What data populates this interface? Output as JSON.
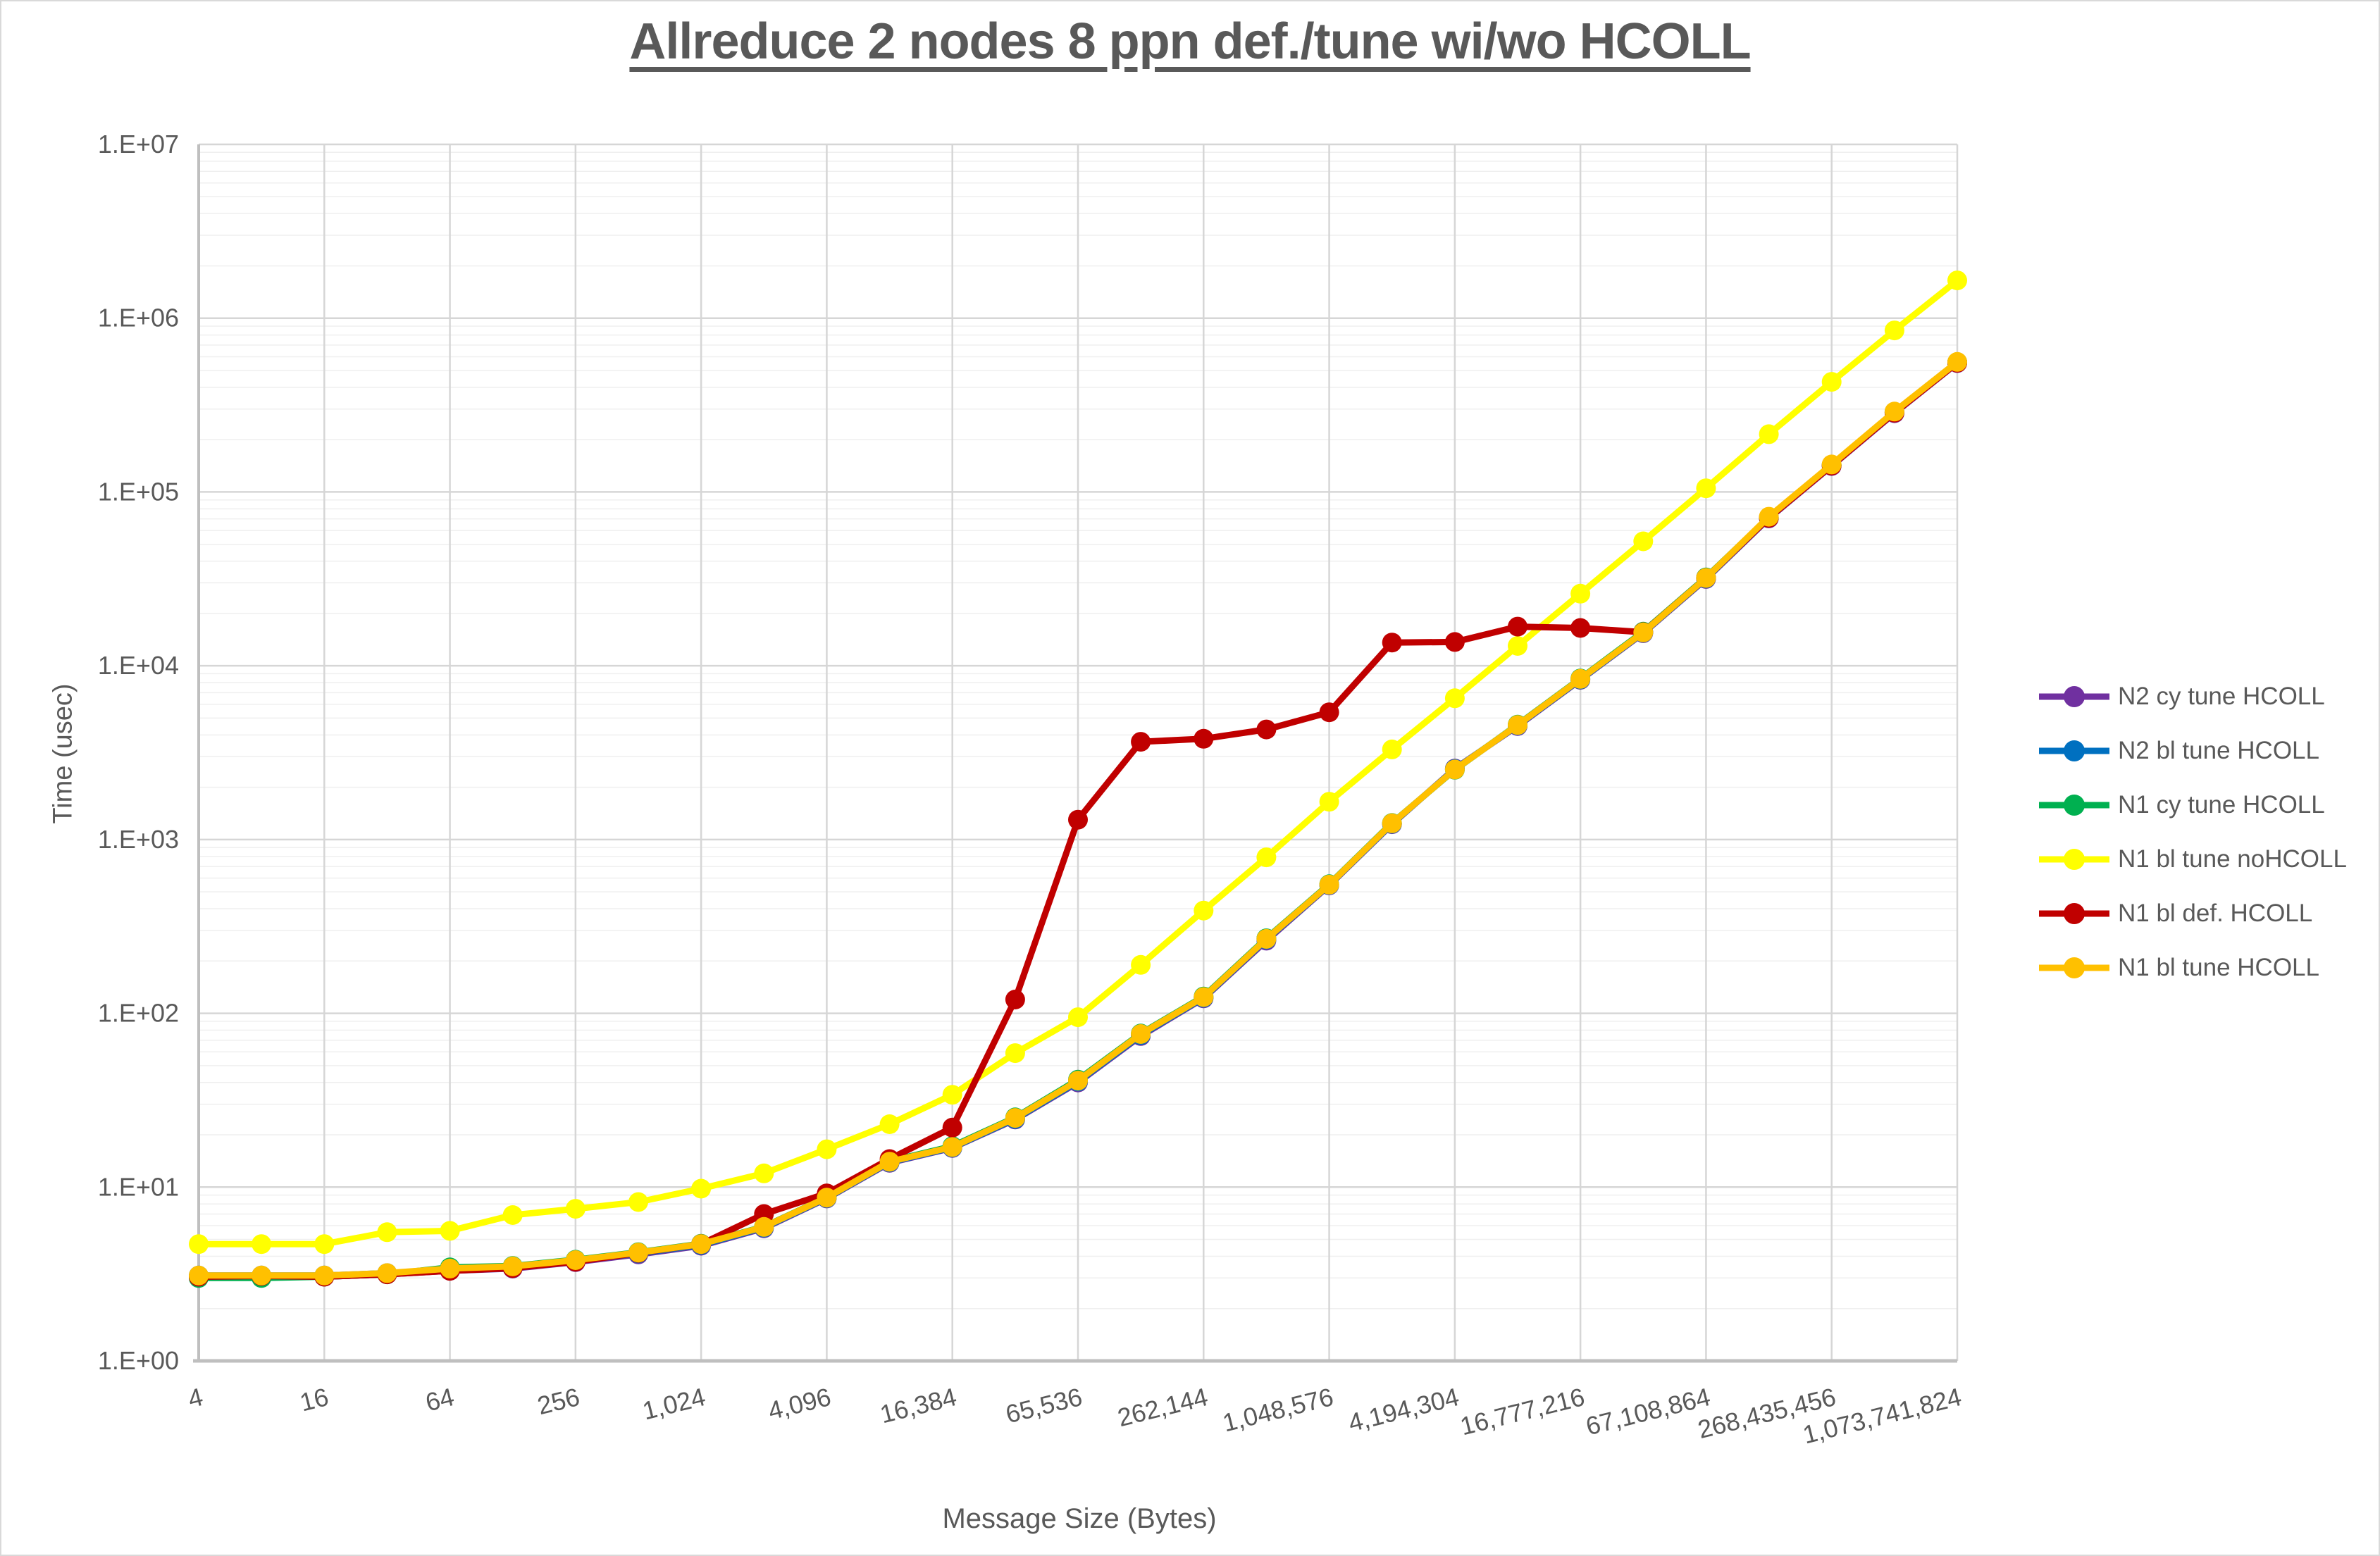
{
  "title": "Allreduce 2 nodes 8 ppn def./tune wi/wo HCOLL",
  "axes": {
    "x_title": "Message Size (Bytes)",
    "y_title": "Time (usec)"
  },
  "colors": {
    "text": "#595959",
    "axis_line": "#bfbfbf",
    "grid_major": "#d6d6d6",
    "grid_minor": "#efefef",
    "background": "#ffffff"
  },
  "chart_data": {
    "type": "line",
    "x_scale": "log2",
    "y_scale": "log10",
    "ylim": [
      1,
      10000000
    ],
    "grid": {
      "major": true,
      "minor_horizontal": true,
      "legend_position": "right"
    },
    "y_tick_labels": [
      "1.E+00",
      "1.E+01",
      "1.E+02",
      "1.E+03",
      "1.E+04",
      "1.E+05",
      "1.E+06",
      "1.E+07"
    ],
    "x_tick_labels": [
      "4",
      "16",
      "64",
      "256",
      "1,024",
      "4,096",
      "16,384",
      "65,536",
      "262,144",
      "1,048,576",
      "4,194,304",
      "16,777,216",
      "67,108,864",
      "268,435,456",
      "1,073,741,824"
    ],
    "x": [
      4,
      8,
      16,
      32,
      64,
      128,
      256,
      512,
      1024,
      2048,
      4096,
      8192,
      16384,
      32768,
      65536,
      131072,
      262144,
      524288,
      1048576,
      2097152,
      4194304,
      8388608,
      16777216,
      33554432,
      67108864,
      134217728,
      268435456,
      536870912,
      1073741824
    ],
    "series": [
      {
        "name": "N2 cy tune HCOLL",
        "color": "#7030A0",
        "values": [
          3.05,
          3.05,
          3.05,
          3.15,
          3.3,
          3.4,
          3.7,
          4.1,
          4.6,
          5.8,
          8.6,
          13.8,
          16.8,
          24.5,
          40,
          74,
          122,
          262,
          545,
          1225,
          2560,
          4500,
          8300,
          15400,
          31600,
          70500,
          141000,
          284000,
          552000
        ]
      },
      {
        "name": "N2 bl tune HCOLL",
        "color": "#0070C0",
        "values": [
          3.1,
          3.1,
          3.1,
          3.2,
          3.35,
          3.45,
          3.75,
          4.15,
          4.65,
          5.85,
          8.65,
          13.9,
          16.9,
          24.7,
          40.5,
          75,
          123,
          266,
          548,
          1232,
          2545,
          4540,
          8350,
          15500,
          31800,
          71000,
          142500,
          287000,
          556000
        ]
      },
      {
        "name": "N1 cy tune HCOLL",
        "color": "#00B050",
        "values": [
          3.0,
          3.0,
          3.05,
          3.15,
          3.45,
          3.52,
          3.82,
          4.22,
          4.72,
          5.92,
          8.72,
          14.1,
          17.2,
          25.2,
          41.5,
          76.5,
          125,
          270,
          553,
          1245,
          2520,
          4580,
          8450,
          15700,
          32200,
          71500,
          143000,
          289000,
          559000
        ]
      },
      {
        "name": "N1 bl tune noHCOLL",
        "color": "#FFFF00",
        "values": [
          4.7,
          4.7,
          4.7,
          5.5,
          5.6,
          6.9,
          7.5,
          8.2,
          9.8,
          12,
          16.5,
          23,
          34,
          59,
          95,
          190,
          390,
          790,
          1650,
          3300,
          6500,
          13000,
          26000,
          52000,
          105000,
          215000,
          430000,
          850000,
          1650000
        ]
      },
      {
        "name": "N1 bl def. HCOLL",
        "color": "#C00000",
        "values": [
          3.05,
          3.08,
          3.05,
          3.15,
          3.3,
          3.42,
          3.72,
          4.18,
          4.7,
          7.0,
          9.2,
          14.5,
          22,
          120,
          1300,
          3650,
          3800,
          4300,
          5400,
          13600,
          13700,
          16800,
          16500,
          15600,
          32000,
          71000,
          142000,
          286000,
          554000
        ]
      },
      {
        "name": "N1 bl tune HCOLL",
        "color": "#FFC000",
        "values": [
          3.1,
          3.1,
          3.1,
          3.2,
          3.4,
          3.5,
          3.8,
          4.2,
          4.7,
          5.9,
          8.7,
          14,
          17,
          25,
          41,
          76,
          124,
          268,
          550,
          1240,
          2530,
          4560,
          8400,
          15550,
          32000,
          72000,
          144000,
          290000,
          560000
        ]
      }
    ]
  }
}
